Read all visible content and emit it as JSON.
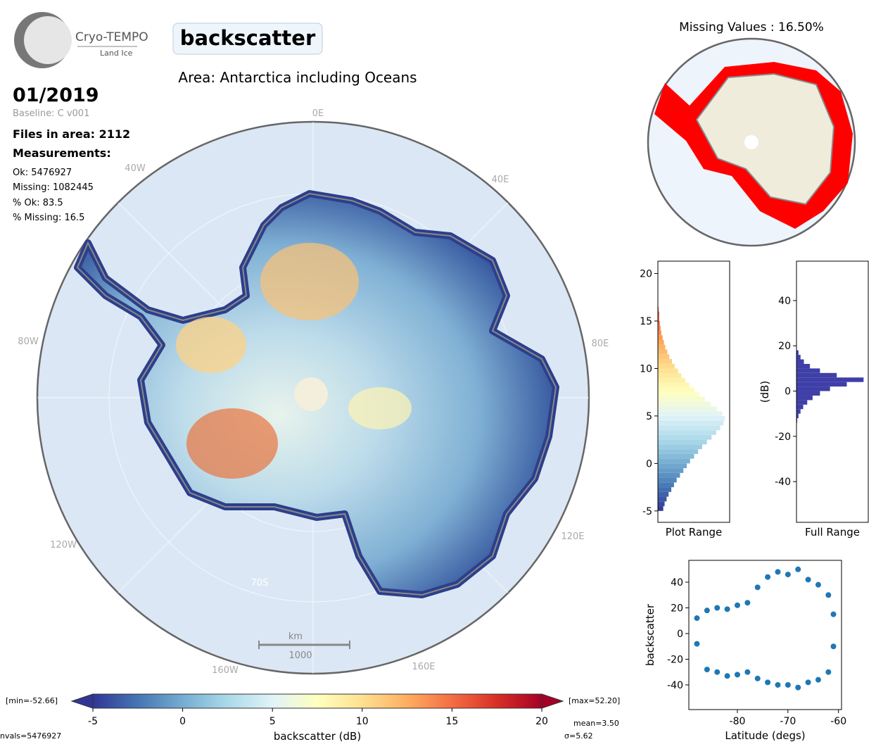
{
  "logo": {
    "name": "Cryo-TEMPO",
    "sub": "Land Ice"
  },
  "header": {
    "title": "backscatter",
    "area": "Area: Antarctica including Oceans",
    "date": "01/2019",
    "baseline": "Baseline: C v001",
    "files": "Files in area: 2112",
    "measurements": "Measurements:",
    "ok": "Ok: 5476927",
    "missing": "Missing: 1082445",
    "pct_ok": "% Ok: 83.5",
    "pct_missing": "% Missing: 16.5"
  },
  "map": {
    "labels": [
      "0E",
      "40E",
      "80E",
      "120E",
      "160E",
      "160W",
      "120W",
      "80W",
      "40W",
      "70S"
    ],
    "scale_unit": "km",
    "scale_value": "1000"
  },
  "missing_map": {
    "title": "Missing Values : 16.50%"
  },
  "stats": {
    "min": "[min=-52.66]",
    "max": "[max=52.20]",
    "mean": "mean=3.50",
    "sigma": "σ=5.62",
    "nvals": "nvals=5476927"
  },
  "chart_data": [
    {
      "type": "colorbar",
      "xlabel": "backscatter (dB)",
      "xlim": [
        -5,
        20
      ],
      "xticks": [
        -5,
        0,
        5,
        10,
        15,
        20
      ],
      "colors": [
        "#313695",
        "#4575b4",
        "#74add1",
        "#abd9e9",
        "#e0f3f8",
        "#ffffbf",
        "#fee090",
        "#fdae61",
        "#f46d43",
        "#d73027",
        "#a50026"
      ]
    },
    {
      "type": "histogram",
      "orientation": "horizontal",
      "xlabel": "Plot Range",
      "colormap": true,
      "bins": [
        -5,
        -4.5,
        -4,
        -3.5,
        -3,
        -2.5,
        -2,
        -1.5,
        -1,
        -0.5,
        0,
        0.5,
        1,
        1.5,
        2,
        2.5,
        3,
        3.5,
        4,
        4.5,
        5,
        5.5,
        6,
        6.5,
        7,
        7.5,
        8,
        8.5,
        9,
        9.5,
        10,
        10.5,
        11,
        11.5,
        12,
        12.5,
        13,
        13.5,
        14,
        14.5,
        15,
        15.5,
        16,
        16.5
      ],
      "values": [
        8,
        10,
        13,
        16,
        20,
        24,
        28,
        33,
        38,
        43,
        48,
        54,
        60,
        66,
        73,
        80,
        87,
        93,
        98,
        100,
        96,
        88,
        79,
        70,
        62,
        54,
        47,
        41,
        35,
        30,
        25,
        21,
        17,
        14,
        11,
        9,
        7,
        5,
        4,
        3,
        2,
        2,
        1
      ],
      "xlim": [
        0,
        107
      ],
      "ylim": [
        -6.2,
        21.3
      ],
      "yticks": [
        -5,
        0,
        5,
        10,
        15,
        20
      ]
    },
    {
      "type": "histogram",
      "orientation": "horizontal",
      "xlabel": "Full Range",
      "ylabel": "(dB)",
      "color": "#3f3fa8",
      "bins": [
        -14,
        -12,
        -10,
        -8,
        -6,
        -4,
        -2,
        0,
        2,
        4,
        6,
        8,
        10,
        12,
        14,
        16,
        18
      ],
      "values": [
        1,
        3,
        6,
        10,
        16,
        24,
        35,
        50,
        75,
        100,
        60,
        35,
        20,
        11,
        6,
        3
      ],
      "xlim": [
        0,
        107
      ],
      "ylim": [
        -58,
        57.4
      ],
      "yticks": [
        -40,
        -20,
        0,
        20,
        40
      ]
    },
    {
      "type": "scatter",
      "xlabel": "Latitude (degs)",
      "ylabel": "backscatter",
      "color": "#1f77b4",
      "x": [
        -88,
        -88,
        -86,
        -86,
        -84,
        -84,
        -82,
        -82,
        -80,
        -80,
        -78,
        -78,
        -76,
        -76,
        -74,
        -74,
        -72,
        -72,
        -70,
        -70,
        -68,
        -68,
        -66,
        -66,
        -64,
        -64,
        -62,
        -62,
        -61,
        -61
      ],
      "values": [
        12,
        -8,
        18,
        -28,
        20,
        -30,
        19,
        -33,
        22,
        -32,
        24,
        -30,
        36,
        -35,
        44,
        -38,
        48,
        -40,
        46,
        -40,
        50,
        -42,
        42,
        -38,
        38,
        -36,
        30,
        -30,
        15,
        -10
      ],
      "xlim": [
        -89.6,
        -59.4
      ],
      "ylim": [
        -59.2,
        57
      ],
      "xticks": [
        -80,
        -70,
        -60
      ],
      "yticks": [
        -40,
        -20,
        0,
        20,
        40
      ]
    }
  ]
}
